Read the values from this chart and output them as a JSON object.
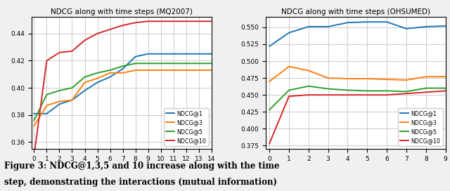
{
  "title_left": "NDCG along with time steps (MQ2007)",
  "title_right": "NDCG along with time steps (OHSUMED)",
  "caption_line1": "Figure 3: NDCG@1,3,5 and 10 increase along with the time",
  "caption_line2": "step, demonstrating the interactions (mutual information)",
  "left": {
    "x": [
      0,
      1,
      2,
      3,
      4,
      5,
      6,
      7,
      8,
      9,
      10,
      11,
      12,
      13,
      14
    ],
    "ndcg1": [
      0.381,
      0.381,
      0.388,
      0.391,
      0.398,
      0.404,
      0.408,
      0.414,
      0.423,
      0.425,
      0.425,
      0.425,
      0.425,
      0.425,
      0.425
    ],
    "ndcg3": [
      0.372,
      0.387,
      0.39,
      0.391,
      0.404,
      0.407,
      0.411,
      0.411,
      0.413,
      0.413,
      0.413,
      0.413,
      0.413,
      0.413,
      0.413
    ],
    "ndcg5": [
      0.376,
      0.395,
      0.398,
      0.4,
      0.408,
      0.411,
      0.413,
      0.416,
      0.418,
      0.418,
      0.418,
      0.418,
      0.418,
      0.418,
      0.418
    ],
    "ndcg10": [
      0.35,
      0.42,
      0.426,
      0.427,
      0.435,
      0.44,
      0.443,
      0.446,
      0.448,
      0.449,
      0.449,
      0.449,
      0.449,
      0.449,
      0.449
    ],
    "ylim": [
      0.355,
      0.452
    ],
    "yticks": [
      0.36,
      0.38,
      0.4,
      0.42,
      0.44
    ],
    "xlim": [
      -0.2,
      14
    ],
    "xticks": [
      0,
      1,
      2,
      3,
      4,
      5,
      6,
      7,
      8,
      9,
      10,
      11,
      12,
      13,
      14
    ]
  },
  "right": {
    "x": [
      0,
      1,
      2,
      3,
      4,
      5,
      6,
      7,
      8,
      9
    ],
    "ndcg1": [
      0.522,
      0.542,
      0.551,
      0.551,
      0.557,
      0.558,
      0.558,
      0.548,
      0.551,
      0.552
    ],
    "ndcg3": [
      0.47,
      0.492,
      0.486,
      0.475,
      0.474,
      0.474,
      0.473,
      0.472,
      0.477,
      0.477
    ],
    "ndcg5": [
      0.428,
      0.457,
      0.463,
      0.459,
      0.457,
      0.456,
      0.456,
      0.455,
      0.46,
      0.46
    ],
    "ndcg10": [
      0.378,
      0.448,
      0.45,
      0.45,
      0.45,
      0.45,
      0.45,
      0.452,
      0.454,
      0.456
    ],
    "ylim": [
      0.37,
      0.565
    ],
    "yticks": [
      0.375,
      0.4,
      0.425,
      0.45,
      0.475,
      0.5,
      0.525,
      0.55
    ],
    "xlim": [
      -0.2,
      9
    ],
    "xticks": [
      0,
      1,
      2,
      3,
      4,
      5,
      6,
      7,
      8,
      9
    ]
  },
  "colors": {
    "ndcg1": "#1f77b4",
    "ndcg3": "#ff7f0e",
    "ndcg5": "#2ca02c",
    "ndcg10": "#d62728"
  },
  "legend_labels": [
    "NDCG@1",
    "NDCG@3",
    "NDCG@5",
    "NDCG@10"
  ],
  "bg_color": "#f0f0f0"
}
